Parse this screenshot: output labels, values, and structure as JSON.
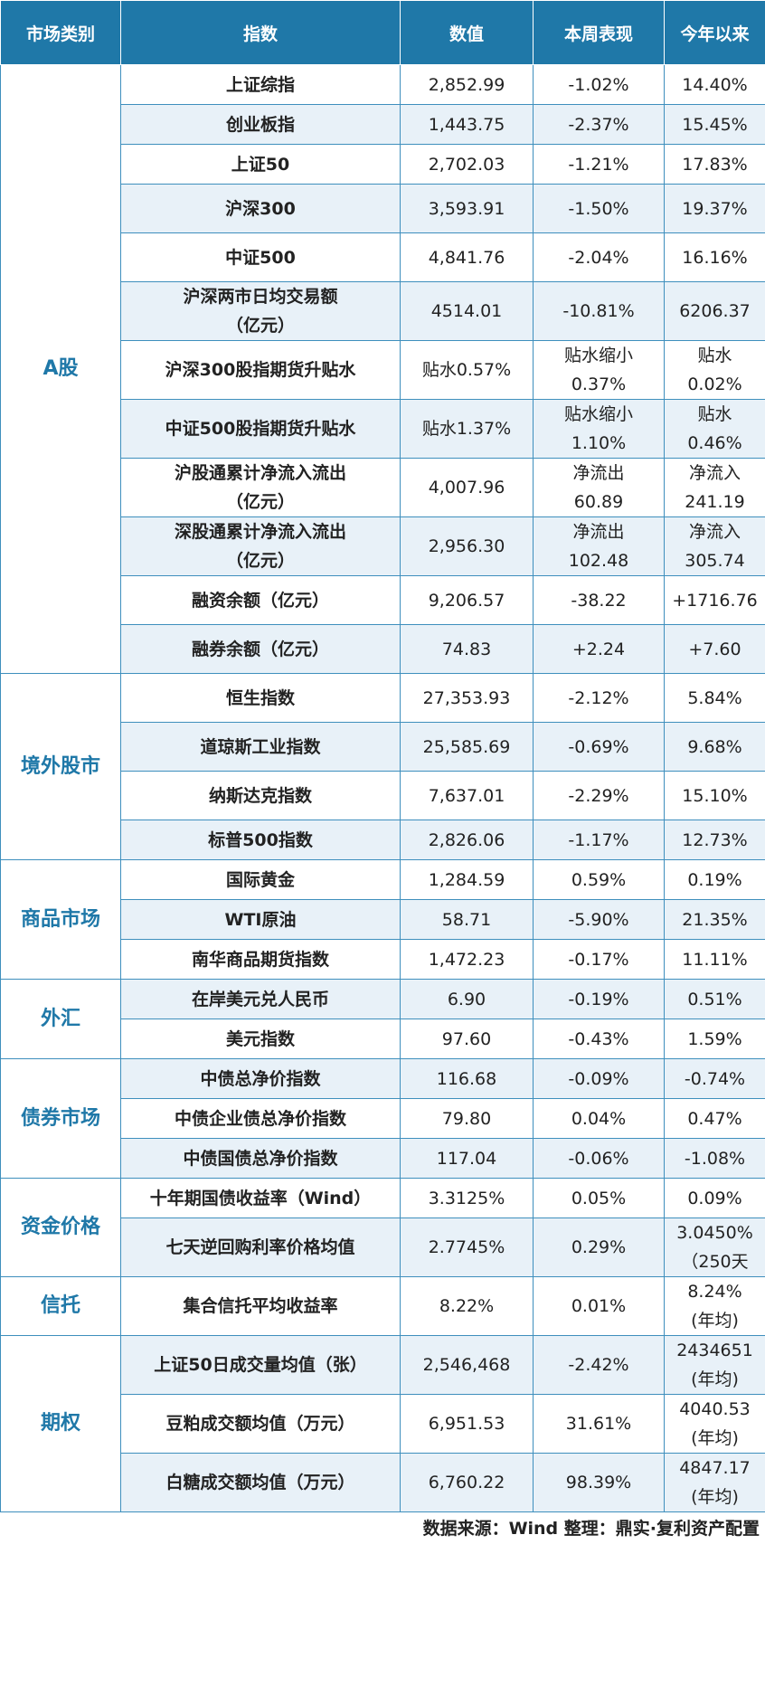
{
  "headers": [
    "市场类别",
    "指数",
    "数值",
    "本周表现",
    "今年以来"
  ],
  "groups": [
    {
      "category": "A股",
      "rows": [
        {
          "name": "上证综指",
          "value": "2,852.99",
          "week": "-1.02%",
          "ytd": "14.40%"
        },
        {
          "name": "创业板指",
          "value": "1,443.75",
          "week": "-2.37%",
          "ytd": "15.45%"
        },
        {
          "name": "上证50",
          "value": "2,702.03",
          "week": "-1.21%",
          "ytd": "17.83%"
        },
        {
          "name": "沪深300",
          "value": "3,593.91",
          "week": "-1.50%",
          "ytd": "19.37%"
        },
        {
          "name": "中证500",
          "value": "4,841.76",
          "week": "-2.04%",
          "ytd": "16.16%"
        },
        {
          "name": "沪深两市日均交易额\n（亿元）",
          "value": "4514.01",
          "week": "-10.81%",
          "ytd": "6206.37"
        },
        {
          "name": "沪深300股指期货升贴水",
          "value": "贴水0.57%",
          "week": "贴水缩小\n0.37%",
          "ytd": "贴水\n0.02%"
        },
        {
          "name": "中证500股指期货升贴水",
          "value": "贴水1.37%",
          "week": "贴水缩小\n1.10%",
          "ytd": "贴水\n0.46%"
        },
        {
          "name": "沪股通累计净流入流出\n（亿元）",
          "value": "4,007.96",
          "week": "净流出\n60.89",
          "ytd": "净流入\n241.19"
        },
        {
          "name": "深股通累计净流入流出\n（亿元）",
          "value": "2,956.30",
          "week": "净流出\n102.48",
          "ytd": "净流入\n305.74"
        },
        {
          "name": "融资余额（亿元）",
          "value": "9,206.57",
          "week": "-38.22",
          "ytd": "+1716.76"
        },
        {
          "name": "融券余额（亿元）",
          "value": "74.83",
          "week": "+2.24",
          "ytd": "+7.60"
        }
      ]
    },
    {
      "category": "境外股市",
      "rows": [
        {
          "name": "恒生指数",
          "value": "27,353.93",
          "week": "-2.12%",
          "ytd": "5.84%"
        },
        {
          "name": "道琼斯工业指数",
          "value": "25,585.69",
          "week": "-0.69%",
          "ytd": "9.68%"
        },
        {
          "name": "纳斯达克指数",
          "value": "7,637.01",
          "week": "-2.29%",
          "ytd": "15.10%"
        },
        {
          "name": "标普500指数",
          "value": "2,826.06",
          "week": "-1.17%",
          "ytd": "12.73%"
        }
      ]
    },
    {
      "category": "商品市场",
      "rows": [
        {
          "name": "国际黄金",
          "value": "1,284.59",
          "week": "0.59%",
          "ytd": "0.19%"
        },
        {
          "name": "WTI原油",
          "value": "58.71",
          "week": "-5.90%",
          "ytd": "21.35%"
        },
        {
          "name": "南华商品期货指数",
          "value": "1,472.23",
          "week": "-0.17%",
          "ytd": "11.11%"
        }
      ]
    },
    {
      "category": "外汇",
      "rows": [
        {
          "name": "在岸美元兑人民币",
          "value": "6.90",
          "week": "-0.19%",
          "ytd": "0.51%"
        },
        {
          "name": "美元指数",
          "value": "97.60",
          "week": "-0.43%",
          "ytd": "1.59%"
        }
      ]
    },
    {
      "category": "债券市场",
      "rows": [
        {
          "name": "中债总净价指数",
          "value": "116.68",
          "week": "-0.09%",
          "ytd": "-0.74%"
        },
        {
          "name": "中债企业债总净价指数",
          "value": "79.80",
          "week": "0.04%",
          "ytd": "0.47%"
        },
        {
          "name": "中债国债总净价指数",
          "value": "117.04",
          "week": "-0.06%",
          "ytd": "-1.08%"
        }
      ]
    },
    {
      "category": "资金价格",
      "rows": [
        {
          "name": "十年期国债收益率（Wind）",
          "value": "3.3125%",
          "week": "0.05%",
          "ytd": "0.09%"
        },
        {
          "name": "七天逆回购利率价格均值",
          "value": "2.7745%",
          "week": "0.29%",
          "ytd": "3.0450%\n（250天"
        }
      ]
    },
    {
      "category": "信托",
      "rows": [
        {
          "name": "集合信托平均收益率",
          "value": "8.22%",
          "week": "0.01%",
          "ytd": "8.24%\n(年均)"
        }
      ]
    },
    {
      "category": "期权",
      "rows": [
        {
          "name": "上证50日成交量均值（张）",
          "value": "2,546,468",
          "week": "-2.42%",
          "ytd": "2434651\n(年均)"
        },
        {
          "name": "豆粕成交额均值（万元）",
          "value": "6,951.53",
          "week": "31.61%",
          "ytd": "4040.53\n(年均)"
        },
        {
          "name": "白糖成交额均值（万元）",
          "value": "6,760.22",
          "week": "98.39%",
          "ytd": "4847.17\n(年均)"
        }
      ]
    }
  ],
  "footer": "数据来源：Wind  整理：鼎实·复利资产配置"
}
